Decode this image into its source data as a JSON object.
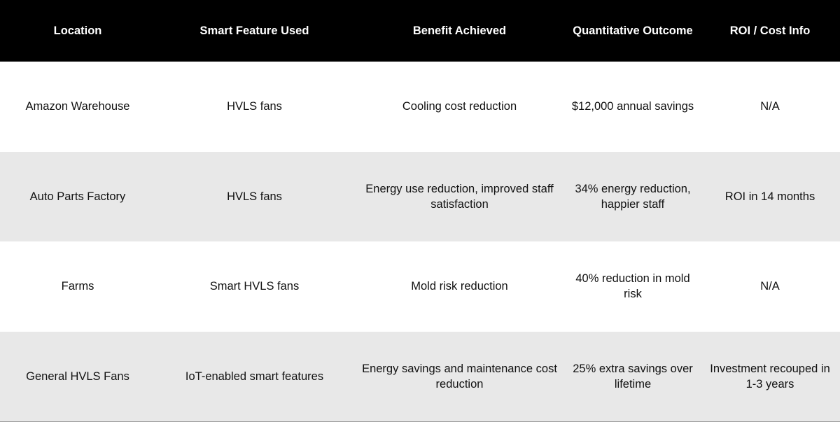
{
  "table": {
    "headers": [
      "Location",
      "Smart Feature Used",
      "Benefit Achieved",
      "Quantitative Outcome",
      "ROI / Cost Info"
    ],
    "rows": [
      [
        "Amazon Warehouse",
        "HVLS fans",
        "Cooling cost reduction",
        "$12,000 annual savings",
        "N/A"
      ],
      [
        "Auto Parts Factory",
        "HVLS fans",
        "Energy use reduction, improved staff satisfaction",
        "34% energy reduction, happier staff",
        "ROI in 14 months"
      ],
      [
        "Farms",
        "Smart HVLS fans",
        "Mold risk reduction",
        "40% reduction in mold risk",
        "N/A"
      ],
      [
        "General HVLS Fans",
        "IoT-enabled smart features",
        "Energy savings and maintenance cost reduction",
        "25% extra savings over lifetime",
        "Investment recouped in 1-3 years"
      ]
    ]
  },
  "colors": {
    "header_bg": "#000000",
    "header_text": "#ffffff",
    "shaded_row_bg": "#e8e8e8",
    "row_bg": "#ffffff"
  }
}
